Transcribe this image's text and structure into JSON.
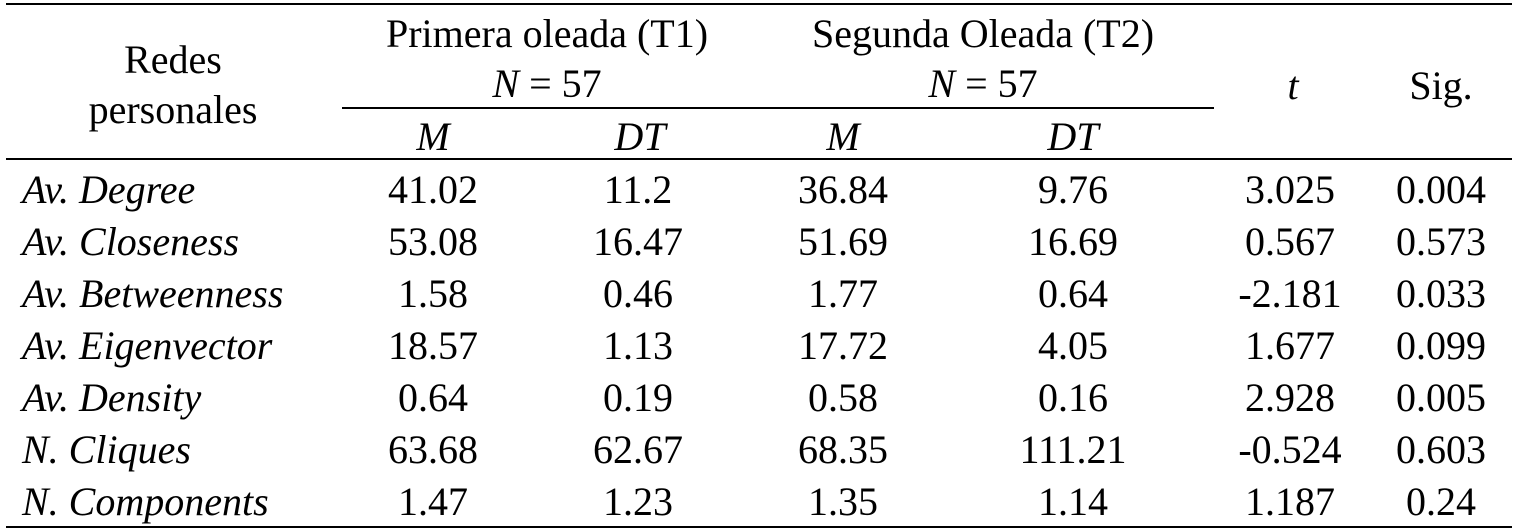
{
  "table": {
    "header": {
      "stub_line1": "Redes",
      "stub_line2": "personales",
      "wave1_title": "Primera oleada (T1)",
      "wave1_n_var": "N",
      "wave1_n_eq": " = 57",
      "wave2_title": "Segunda Oleada (T2)",
      "wave2_n_var": "N",
      "wave2_n_eq": " = 57",
      "t_label": "t",
      "sig_label": "Sig.",
      "sub": [
        "M",
        "DT",
        "M",
        "DT"
      ]
    },
    "rows": [
      {
        "label": "Av. Degree",
        "cells": [
          "41.02",
          "11.2",
          "36.84",
          "9.76",
          "3.025",
          "0.004"
        ]
      },
      {
        "label": "Av. Closeness",
        "cells": [
          "53.08",
          "16.47",
          "51.69",
          "16.69",
          "0.567",
          "0.573"
        ]
      },
      {
        "label": "Av. Betweenness",
        "cells": [
          "1.58",
          "0.46",
          "1.77",
          "0.64",
          "-2.181",
          "0.033"
        ]
      },
      {
        "label": "Av. Eigenvector",
        "cells": [
          "18.57",
          "1.13",
          "17.72",
          "4.05",
          "1.677",
          "0.099"
        ]
      },
      {
        "label": "Av. Density",
        "cells": [
          "0.64",
          "0.19",
          "0.58",
          "0.16",
          "2.928",
          "0.005"
        ]
      },
      {
        "label": "N. Cliques",
        "cells": [
          "63.68",
          "62.67",
          "68.35",
          "111.21",
          "-0.524",
          "0.603"
        ]
      },
      {
        "label": "N. Components",
        "cells": [
          "1.47",
          "1.23",
          "1.35",
          "1.14",
          "1.187",
          "0.24"
        ]
      }
    ]
  }
}
